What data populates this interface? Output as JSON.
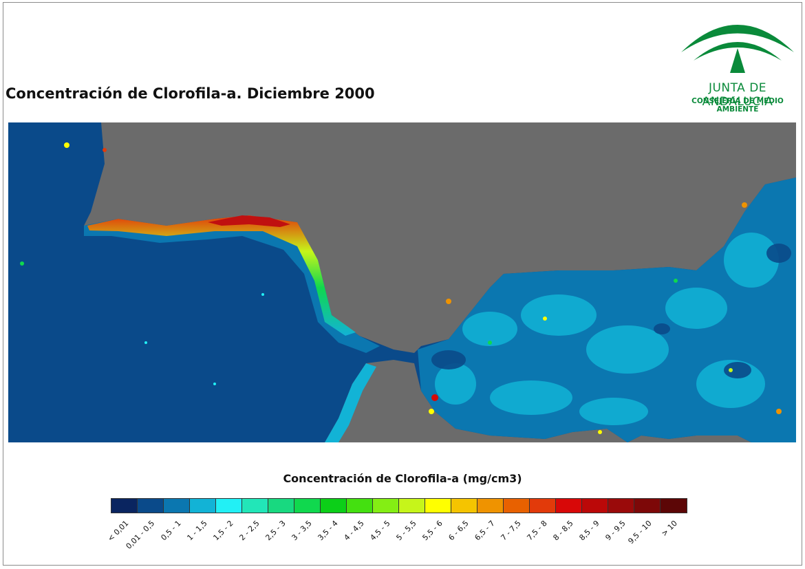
{
  "title": "Concentración de Clorofila-a. Diciembre 2000",
  "logo": {
    "name": "JUNTA DE ANDALUCIA",
    "subtitle": "CONSEJERÍA DE MEDIO AMBIENTE",
    "color": "#0a8a3a"
  },
  "map": {
    "land_color": "#6b6b6b",
    "ocean_low_color": "#0a4a8a",
    "description_regions": [
      "atlantic",
      "strait",
      "mediterranean"
    ]
  },
  "legend": {
    "title": "Concentración de Clorofila-a (mg/cm3)",
    "classes": [
      {
        "label": "< 0,01",
        "color": "#0a2560"
      },
      {
        "label": "0,01 - 0,5",
        "color": "#0a4a8a"
      },
      {
        "label": "0,5 - 1",
        "color": "#0b77b0"
      },
      {
        "label": "1 - 1,5",
        "color": "#12b3d6"
      },
      {
        "label": "1,5 - 2",
        "color": "#22f0f5"
      },
      {
        "label": "2 - 2,5",
        "color": "#22e6b8"
      },
      {
        "label": "2,5 - 3",
        "color": "#18d980"
      },
      {
        "label": "3 - 3,5",
        "color": "#10d84e"
      },
      {
        "label": "3,5 - 4",
        "color": "#0ccf18"
      },
      {
        "label": "4 - 4,5",
        "color": "#44e010"
      },
      {
        "label": "4,5 - 5",
        "color": "#84ee14"
      },
      {
        "label": "5 - 5,5",
        "color": "#c6f51a"
      },
      {
        "label": "5,5 - 6",
        "color": "#ffff00"
      },
      {
        "label": "6 - 6,5",
        "color": "#f5c400"
      },
      {
        "label": "6,5 - 7",
        "color": "#ef9300"
      },
      {
        "label": "7 - 7,5",
        "color": "#e86100"
      },
      {
        "label": "7,5 - 8",
        "color": "#e23a0a"
      },
      {
        "label": "8 - 8,5",
        "color": "#d80808"
      },
      {
        "label": "8,5 - 9",
        "color": "#bb0808"
      },
      {
        "label": "9 - 9,5",
        "color": "#9a0a0a"
      },
      {
        "label": "9,5 - 10",
        "color": "#7d0808"
      },
      {
        "label": "> 10",
        "color": "#5c0606"
      }
    ]
  }
}
